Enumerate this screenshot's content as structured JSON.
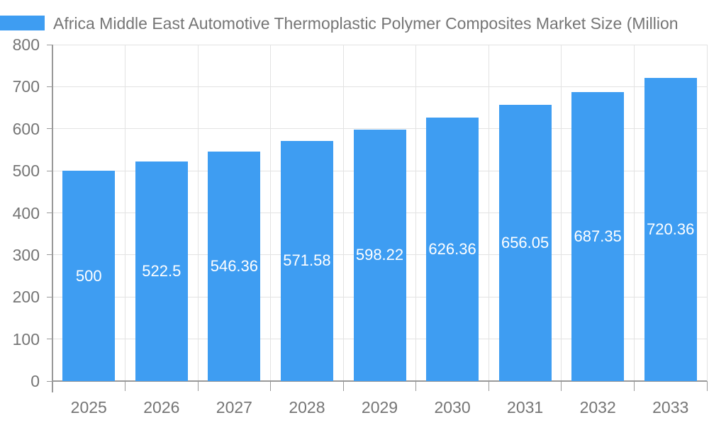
{
  "header": {
    "title": "Africa Middle East Automotive Thermoplastic Polymer Composites Market Size (Million"
  },
  "chart_data": {
    "type": "bar",
    "title": "Africa Middle East Automotive Thermoplastic Polymer Composites Market Size (Million",
    "categories": [
      "2025",
      "2026",
      "2027",
      "2028",
      "2029",
      "2030",
      "2031",
      "2032",
      "2033"
    ],
    "values": [
      500,
      522.5,
      546.36,
      571.58,
      598.22,
      626.36,
      656.05,
      687.35,
      720.36
    ],
    "value_labels": [
      "500",
      "522.5",
      "546.36",
      "571.58",
      "598.22",
      "626.36",
      "656.05",
      "687.35",
      "720.36"
    ],
    "series_name": "Africa Middle East Automotive Thermoplastic Polymer Composites Market Size (Million",
    "xlabel": "",
    "ylabel": "",
    "ylim": [
      0,
      800
    ],
    "yticks": [
      "0",
      "100",
      "200",
      "300",
      "400",
      "500",
      "600",
      "700",
      "800"
    ],
    "grid": true,
    "legend_position": "top-left",
    "label_position": "inside-center",
    "colors": {
      "bar": "#3E9DF2",
      "bar_label": "#FFFFFF",
      "axis_text": "#757575",
      "grid_line": "#E3E3E3",
      "axis_line": "#999999",
      "background": "#FFFFFF"
    }
  }
}
